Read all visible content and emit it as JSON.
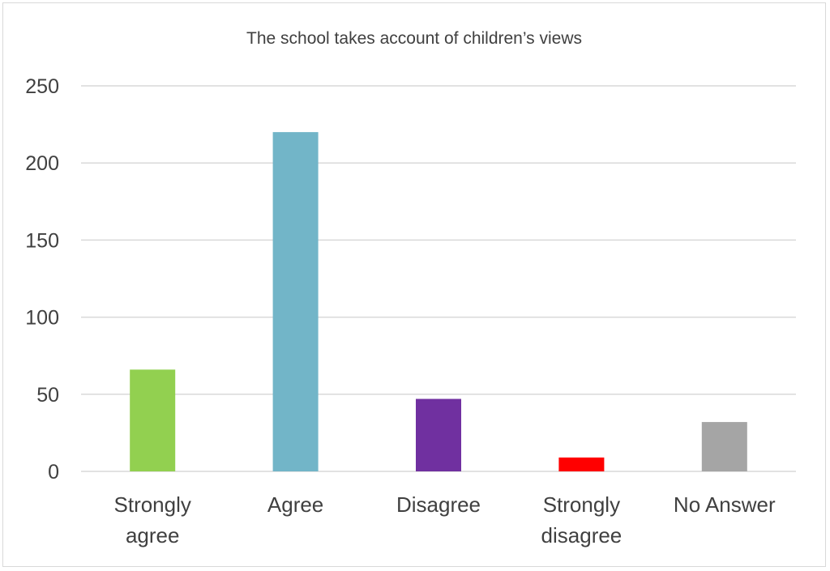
{
  "chart_data": {
    "type": "bar",
    "title": "The school takes account of children’s views",
    "categories": [
      [
        "Strongly",
        "agree"
      ],
      [
        "Agree"
      ],
      [
        "Disagree"
      ],
      [
        "Strongly",
        "disagree"
      ],
      [
        "No Answer"
      ]
    ],
    "values": [
      66,
      220,
      47,
      9,
      32
    ],
    "colors": [
      "#92d050",
      "#72b5c8",
      "#7030a0",
      "#ff0000",
      "#a5a5a5"
    ],
    "yticks": [
      0,
      50,
      100,
      150,
      200,
      250
    ],
    "ylim": [
      0,
      250
    ],
    "grid": true,
    "legend": "none"
  }
}
